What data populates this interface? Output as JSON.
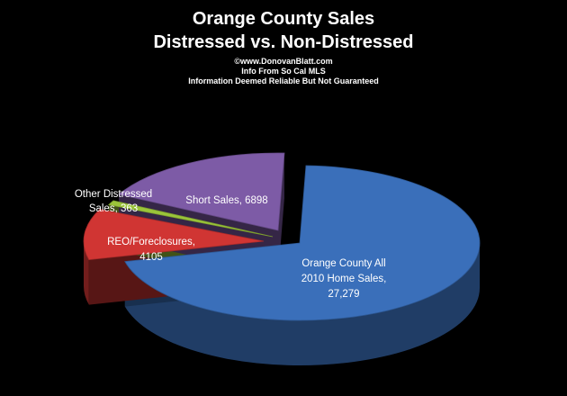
{
  "header": {
    "title_line1": "Orange County Sales",
    "title_line2": "Distressed vs. Non-Distressed",
    "credit": "©www.DonovanBlatt.com",
    "source": "Info  From So Cal MLS",
    "disclaimer": "Information Deemed Reliable But Not Guaranteed"
  },
  "chart_data": {
    "type": "pie",
    "title": "Orange County Sales Distressed vs. Non-Distressed",
    "slices": [
      {
        "label_lines": [
          "Orange County    All",
          "2010 Home Sales,",
          "27,279"
        ],
        "name": "Orange County All 2010 Home Sales",
        "value": 27279,
        "color": "#3A6FBA",
        "label_color": "#FFFFFF"
      },
      {
        "label_lines": [
          "REO/Foreclosures,",
          "4105"
        ],
        "name": "REO/Foreclosures",
        "value": 4105,
        "color": "#D03533",
        "label_color": "#FFFFFF"
      },
      {
        "label_lines": [
          "Other Distressed",
          "Sales, 363"
        ],
        "name": "Other Distressed Sales",
        "value": 363,
        "color": "#9BC43A",
        "label_color": "#FFFFFF"
      },
      {
        "label_lines": [
          "Short Sales, 6898"
        ],
        "name": "Short Sales",
        "value": 6898,
        "color": "#7D5BA6",
        "label_color": "#FFFFFF"
      }
    ],
    "style": "3d-exploded-pie",
    "legend": "none"
  }
}
